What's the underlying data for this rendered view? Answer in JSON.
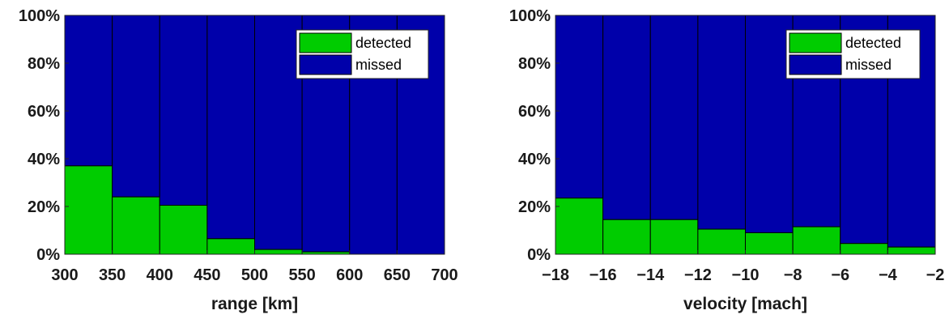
{
  "colors": {
    "detected": "#00cc00",
    "missed": "#0000aa",
    "edge": "#000000"
  },
  "chart_data": [
    {
      "type": "bar",
      "stacked": true,
      "percent": true,
      "x_edges": [
        300,
        350,
        400,
        450,
        500,
        550,
        600,
        650,
        700
      ],
      "xticks": [
        "300",
        "350",
        "400",
        "450",
        "500",
        "550",
        "600",
        "650",
        "700"
      ],
      "yticks": [
        "0%",
        "20%",
        "40%",
        "60%",
        "80%",
        "100%"
      ],
      "ylim": [
        0,
        100
      ],
      "xlabel": "range [km]",
      "ylabel": "",
      "title": "",
      "legend_position": "top-right",
      "series": [
        {
          "name": "detected",
          "values": [
            37,
            24,
            20.5,
            6.5,
            2,
            1,
            0,
            0
          ]
        },
        {
          "name": "missed",
          "values": [
            63,
            76,
            79.5,
            93.5,
            98,
            99,
            100,
            100
          ]
        }
      ]
    },
    {
      "type": "bar",
      "stacked": true,
      "percent": true,
      "x_edges": [
        -18,
        -16,
        -14,
        -12,
        -10,
        -8,
        -6,
        -4,
        -2
      ],
      "xticks": [
        "−18",
        "−16",
        "−14",
        "−12",
        "−10",
        "−8",
        "−6",
        "−4",
        "−2"
      ],
      "yticks": [
        "0%",
        "20%",
        "40%",
        "60%",
        "80%",
        "100%"
      ],
      "ylim": [
        0,
        100
      ],
      "xlabel": "velocity [mach]",
      "ylabel": "",
      "title": "",
      "legend_position": "top-right",
      "series": [
        {
          "name": "detected",
          "values": [
            23.5,
            14.5,
            14.5,
            10.5,
            9,
            11.5,
            4.5,
            3
          ]
        },
        {
          "name": "missed",
          "values": [
            76.5,
            85.5,
            85.5,
            89.5,
            91,
            88.5,
            95.5,
            97
          ]
        }
      ]
    }
  ]
}
